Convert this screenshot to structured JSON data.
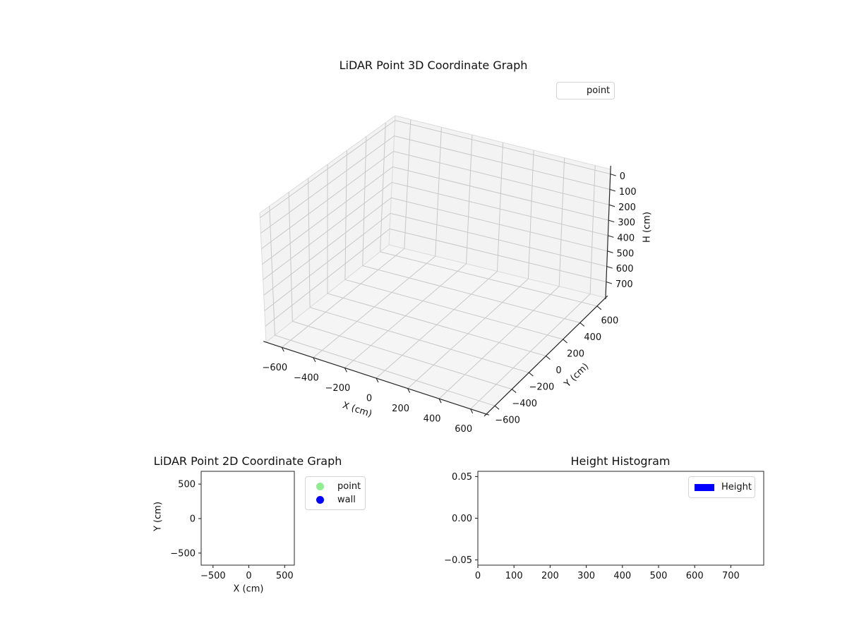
{
  "figure": {
    "background": "#ffffff",
    "text_color": "#111111",
    "grid_color": "#c8c8c8",
    "pane_color": "#f3f3f3",
    "floor_color": "#f5f5f5",
    "axis_color": "#262626"
  },
  "chart_data": [
    {
      "id": "lidar-3d",
      "type": "scatter3d",
      "title": "LiDAR Point 3D Coordinate Graph",
      "xlabel": "X (cm)",
      "ylabel": "Y (cm)",
      "zlabel": "H (cm)",
      "xlim": [
        -700,
        700
      ],
      "ylim": [
        -700,
        700
      ],
      "zlim": [
        -30,
        803
      ],
      "z_axis_inverted": true,
      "grid": true,
      "x_ticks": [
        {
          "v": -600,
          "label": "−600"
        },
        {
          "v": -400,
          "label": "−400"
        },
        {
          "v": -200,
          "label": "−200"
        },
        {
          "v": 0,
          "label": "0"
        },
        {
          "v": 200,
          "label": "200"
        },
        {
          "v": 400,
          "label": "400"
        },
        {
          "v": 600,
          "label": "600"
        }
      ],
      "y_ticks": [
        {
          "v": -600,
          "label": "−600"
        },
        {
          "v": -400,
          "label": "−400"
        },
        {
          "v": -200,
          "label": "−200"
        },
        {
          "v": 0,
          "label": "0"
        },
        {
          "v": 200,
          "label": "200"
        },
        {
          "v": 400,
          "label": "400"
        },
        {
          "v": 600,
          "label": "600"
        }
      ],
      "z_ticks": [
        {
          "v": 0,
          "label": "0"
        },
        {
          "v": 100,
          "label": "100"
        },
        {
          "v": 200,
          "label": "200"
        },
        {
          "v": 300,
          "label": "300"
        },
        {
          "v": 400,
          "label": "400"
        },
        {
          "v": 500,
          "label": "500"
        },
        {
          "v": 600,
          "label": "600"
        },
        {
          "v": 700,
          "label": "700"
        }
      ],
      "legend": {
        "position": "upper right",
        "entries": [
          {
            "label": "point",
            "marker": "none",
            "marker_visible": false
          }
        ]
      },
      "series": [
        {
          "name": "point",
          "points": []
        }
      ]
    },
    {
      "id": "lidar-2d",
      "type": "scatter",
      "title": "LiDAR Point 2D Coordinate Graph",
      "xlabel": "X (cm)",
      "ylabel": "Y (cm)",
      "xlim": [
        -665,
        635
      ],
      "ylim": [
        -675,
        685
      ],
      "grid": false,
      "x_ticks": [
        {
          "v": -500,
          "label": "−500"
        },
        {
          "v": 0,
          "label": "0"
        },
        {
          "v": 500,
          "label": "500"
        }
      ],
      "y_ticks": [
        {
          "v": 500,
          "label": "500"
        },
        {
          "v": 0,
          "label": "0"
        },
        {
          "v": -500,
          "label": "−500"
        }
      ],
      "legend": {
        "position": "outside right",
        "entries": [
          {
            "label": "point",
            "marker": "circle",
            "color": "#90ee90"
          },
          {
            "label": "wall",
            "marker": "circle",
            "color": "#0000ff"
          }
        ]
      },
      "series": [
        {
          "name": "point",
          "points": []
        },
        {
          "name": "wall",
          "points": []
        }
      ]
    },
    {
      "id": "height-histogram",
      "type": "bar",
      "title": "Height Histogram",
      "xlabel": "",
      "ylabel": "",
      "xlim": [
        0,
        791
      ],
      "ylim": [
        -0.0563,
        0.0563
      ],
      "grid": false,
      "x_ticks": [
        {
          "v": 0,
          "label": "0"
        },
        {
          "v": 100,
          "label": "100"
        },
        {
          "v": 200,
          "label": "200"
        },
        {
          "v": 300,
          "label": "300"
        },
        {
          "v": 400,
          "label": "400"
        },
        {
          "v": 500,
          "label": "500"
        },
        {
          "v": 600,
          "label": "600"
        },
        {
          "v": 700,
          "label": "700"
        }
      ],
      "y_ticks": [
        {
          "v": 0.05,
          "label": "0.05"
        },
        {
          "v": 0,
          "label": "0.00"
        },
        {
          "v": -0.05,
          "label": "−0.05"
        }
      ],
      "legend": {
        "position": "upper right",
        "entries": [
          {
            "label": "Height",
            "marker": "rect",
            "color": "#0000ff"
          }
        ]
      },
      "values": []
    }
  ]
}
